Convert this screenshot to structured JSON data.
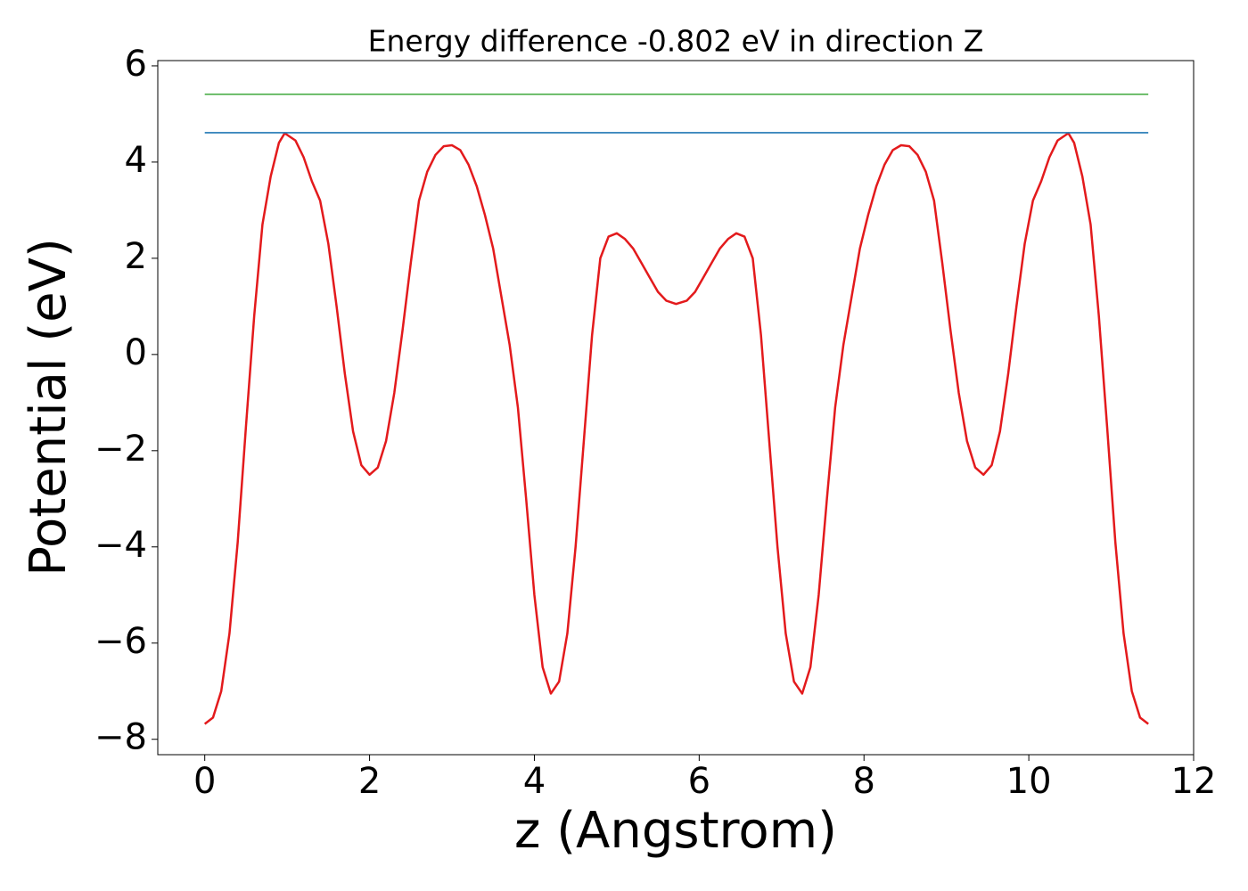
{
  "chart_data": {
    "type": "line",
    "title": "Energy difference -0.802 eV in direction Z",
    "x_label": "z (Angstrom)",
    "y_label": "Potential (eV)",
    "xlim": [
      -0.57,
      12.0
    ],
    "ylim": [
      -8.32,
      6.11
    ],
    "xticks": [
      0,
      2,
      4,
      6,
      8,
      10,
      12
    ],
    "yticks": [
      {
        "value": -8,
        "label": "−8"
      },
      {
        "value": -6,
        "label": "−6"
      },
      {
        "value": -4,
        "label": "−4"
      },
      {
        "value": -2,
        "label": "−2"
      },
      0,
      2,
      4,
      6
    ],
    "grid": false,
    "series": [
      {
        "color": "#e31a1c",
        "x": [
          0,
          0.1,
          0.2,
          0.3,
          0.4,
          0.5,
          0.6,
          0.7,
          0.8,
          0.9,
          0.97,
          1.1,
          1.2,
          1.3,
          1.4,
          1.5,
          1.6,
          1.7,
          1.8,
          1.9,
          2.0,
          2.1,
          2.2,
          2.3,
          2.4,
          2.5,
          2.6,
          2.7,
          2.8,
          2.9,
          3.0,
          3.1,
          3.2,
          3.3,
          3.4,
          3.5,
          3.6,
          3.7,
          3.8,
          3.9,
          4.0,
          4.1,
          4.2,
          4.3,
          4.4,
          4.5,
          4.6,
          4.7,
          4.8,
          4.9,
          5.0,
          5.1,
          5.2,
          5.3,
          5.4,
          5.5,
          5.6,
          5.72,
          5.85,
          5.95,
          6.05,
          6.15,
          6.25,
          6.35,
          6.45,
          6.55,
          6.65,
          6.75,
          6.85,
          6.95,
          7.05,
          7.15,
          7.25,
          7.35,
          7.45,
          7.55,
          7.65,
          7.75,
          7.85,
          7.95,
          8.05,
          8.15,
          8.25,
          8.35,
          8.45,
          8.55,
          8.65,
          8.75,
          8.85,
          8.95,
          9.05,
          9.15,
          9.25,
          9.35,
          9.45,
          9.55,
          9.65,
          9.75,
          9.85,
          9.95,
          10.05,
          10.15,
          10.25,
          10.35,
          10.48,
          10.55,
          10.65,
          10.75,
          10.85,
          10.95,
          11.05,
          11.15,
          11.25,
          11.35,
          11.45
        ],
        "values": [
          -7.68,
          -7.55,
          -7.0,
          -5.8,
          -3.9,
          -1.5,
          0.8,
          2.7,
          3.7,
          4.4,
          4.6,
          4.45,
          4.1,
          3.6,
          3.2,
          2.3,
          1.0,
          -0.4,
          -1.6,
          -2.3,
          -2.5,
          -2.35,
          -1.8,
          -0.8,
          0.5,
          1.9,
          3.2,
          3.8,
          4.15,
          4.33,
          4.35,
          4.25,
          3.95,
          3.5,
          2.9,
          2.2,
          1.2,
          0.2,
          -1.1,
          -3.0,
          -5.0,
          -6.5,
          -7.05,
          -6.8,
          -5.8,
          -4.0,
          -1.8,
          0.4,
          2.0,
          2.45,
          2.52,
          2.4,
          2.2,
          1.9,
          1.6,
          1.3,
          1.12,
          1.05,
          1.12,
          1.3,
          1.6,
          1.9,
          2.2,
          2.4,
          2.52,
          2.45,
          2.0,
          0.4,
          -1.8,
          -4.0,
          -5.8,
          -6.8,
          -7.05,
          -6.5,
          -5.0,
          -3.0,
          -1.1,
          0.2,
          1.2,
          2.2,
          2.9,
          3.5,
          3.95,
          4.25,
          4.35,
          4.33,
          4.15,
          3.8,
          3.2,
          1.9,
          0.5,
          -0.8,
          -1.8,
          -2.35,
          -2.5,
          -2.3,
          -1.6,
          -0.4,
          1.0,
          2.3,
          3.2,
          3.6,
          4.1,
          4.45,
          4.6,
          4.4,
          3.7,
          2.7,
          0.8,
          -1.5,
          -3.9,
          -5.8,
          -7.0,
          -7.55,
          -7.68
        ]
      },
      {
        "color": "#1f77b4",
        "x": [
          0,
          11.45
        ],
        "values": [
          4.61,
          4.61
        ]
      },
      {
        "color": "#4daf4a",
        "x": [
          0,
          11.45
        ],
        "values": [
          5.41,
          5.41
        ]
      }
    ]
  }
}
